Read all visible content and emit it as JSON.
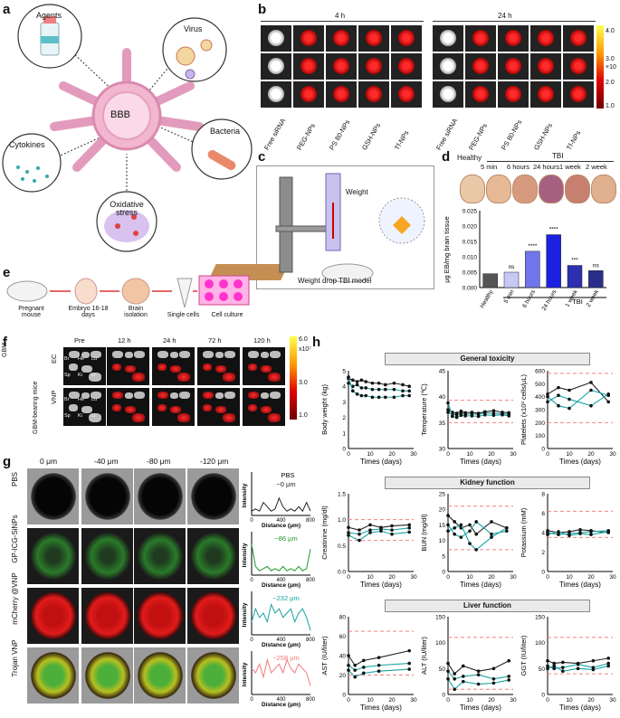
{
  "panels": {
    "a": {
      "label": "a",
      "center": "BBB",
      "bubbles": [
        "Agents",
        "Virus",
        "Cytokines",
        "Bacteria",
        "Oxidative stress"
      ]
    },
    "b": {
      "label": "b",
      "time_left": "4 h",
      "time_right": "24 h",
      "groups": [
        "Free siRNA",
        "PEG-NPs",
        "PS 80-NPs",
        "GSH-NPs",
        "Tf-NPs"
      ],
      "colorbar": {
        "ticks": [
          "4.0",
          "3.0",
          "2.0",
          "1.0"
        ],
        "unit": "×10"
      }
    },
    "c": {
      "label": "c",
      "weight": "Weight",
      "caption": "Weight drop TBI model"
    },
    "d": {
      "label": "d",
      "healthy": "Healthy",
      "tbi": "TBI",
      "photo_labels": [
        "5 min",
        "6 hours",
        "24 hours",
        "1 week",
        "2 week"
      ],
      "ylabel": "μg EB/mg brain tissue",
      "xgroup": "TBI"
    },
    "e": {
      "label": "e",
      "steps": [
        "Pregnant mouse",
        "Embryo 16-18 days",
        "Brain isolation",
        "Single cells",
        "Cell culture"
      ]
    },
    "f": {
      "label": "f",
      "left_labels": [
        "GBM",
        "GBM-bearing mice"
      ],
      "rows": [
        "EC",
        "VNP"
      ],
      "times": [
        "Pre",
        "12 h",
        "24 h",
        "72 h",
        "120 h"
      ],
      "organs": [
        "Br",
        "He",
        "Lu",
        "Sp",
        "Ki",
        "Li"
      ],
      "colorbar": {
        "ticks": [
          "6.0",
          "x10⁷",
          "3.0",
          "1.0"
        ]
      }
    },
    "g": {
      "label": "g",
      "depths": [
        "0 μm",
        "-40 μm",
        "-80 μm",
        "-120 μm"
      ],
      "rows": [
        {
          "name": "PBS",
          "depth": "~0 μm",
          "title": "PBS"
        },
        {
          "name": "GP-ICG-SiNPs",
          "depth": "~86 μm",
          "title": ""
        },
        {
          "name": "mCherry @VNP",
          "depth": "~232 μm",
          "title": ""
        },
        {
          "name": "Trojan VNP",
          "depth": "~258 μm",
          "title": ""
        }
      ],
      "ylabel": "Intensity",
      "xlabel": "Distance (μm)",
      "xticks": [
        "0",
        "400",
        "800"
      ]
    },
    "h": {
      "label": "h",
      "sections": [
        "General toxicity",
        "Kidney function",
        "Liver function"
      ],
      "xlabel": "Times (days)"
    }
  },
  "chart_data": [
    {
      "id": "d-bar",
      "type": "bar",
      "categories": [
        "Healthy",
        "5 min",
        "6 hours",
        "24 hours",
        "1 week",
        "2 week"
      ],
      "values": [
        0.0045,
        0.005,
        0.0118,
        0.0172,
        0.0072,
        0.0055
      ],
      "annotations": [
        "",
        "ns",
        "****",
        "****",
        "***",
        "ns"
      ],
      "ylabel": "μg EB/mg brain tissue",
      "ylim": [
        0,
        0.025
      ],
      "yticks": [
        "0.000",
        "0.005",
        "0.010",
        "0.015",
        "0.020",
        "0.025"
      ],
      "colors": [
        "#555555",
        "#c7c9f5",
        "#6f75ea",
        "#1a22e0",
        "#2b2fb0",
        "#2a2e8a"
      ]
    },
    {
      "id": "h1",
      "type": "line",
      "title": "Body weight (kg)",
      "ylabel": "Body weight (kg)",
      "ylim": [
        0,
        5
      ],
      "yticks": [
        "0",
        "1",
        "2",
        "3",
        "4",
        "5"
      ],
      "x": [
        0,
        2,
        4,
        6,
        8,
        11,
        14,
        17,
        21,
        25,
        28
      ],
      "series": [
        {
          "name": "s1",
          "values": [
            4.5,
            4.4,
            4.3,
            4.4,
            4.3,
            4.2,
            4.2,
            4.1,
            4.2,
            4.1,
            4.0
          ]
        },
        {
          "name": "s2",
          "values": [
            4.2,
            4.0,
            4.1,
            3.9,
            3.9,
            3.8,
            3.8,
            3.8,
            3.8,
            3.7,
            3.7
          ]
        },
        {
          "name": "s3",
          "values": [
            4.6,
            3.7,
            3.5,
            3.4,
            3.4,
            3.3,
            3.3,
            3.3,
            3.3,
            3.4,
            3.4
          ]
        }
      ],
      "ref": [],
      "xticks": [
        "0",
        "10",
        "20",
        "30"
      ],
      "xlim": [
        0,
        30
      ]
    },
    {
      "id": "h2",
      "type": "line",
      "title": "Temperature (℃)",
      "ylabel": "Temperature (℃)",
      "ylim": [
        30,
        45
      ],
      "yticks": [
        "30",
        "35",
        "40",
        "45"
      ],
      "x": [
        0,
        2,
        4,
        6,
        8,
        11,
        14,
        17,
        21,
        25,
        28
      ],
      "series": [
        {
          "name": "s1",
          "values": [
            37.5,
            37.0,
            36.8,
            37.2,
            36.9,
            37.0,
            36.8,
            37.1,
            37.3,
            37.0,
            36.9
          ]
        },
        {
          "name": "s2",
          "values": [
            37.0,
            36.6,
            36.5,
            36.8,
            36.6,
            36.7,
            36.6,
            36.9,
            36.8,
            36.7,
            36.6
          ]
        },
        {
          "name": "s3",
          "values": [
            38.8,
            36.2,
            36.0,
            36.4,
            36.3,
            36.3,
            36.2,
            36.5,
            36.4,
            36.5,
            36.3
          ]
        }
      ],
      "ref": [
        35.0,
        39.3
      ],
      "xticks": [
        "0",
        "10",
        "20",
        "30"
      ],
      "xlim": [
        0,
        30
      ]
    },
    {
      "id": "h3",
      "type": "line",
      "title": "Platelets",
      "ylabel": "Platelets (x10³ cells/μL)",
      "ylim": [
        0,
        600
      ],
      "yticks": [
        "0",
        "100",
        "200",
        "300",
        "400",
        "500",
        "600"
      ],
      "x": [
        0,
        5,
        10,
        20,
        28
      ],
      "series": [
        {
          "name": "s1",
          "values": [
            420,
            470,
            450,
            510,
            360
          ]
        },
        {
          "name": "s2",
          "values": [
            400,
            330,
            310,
            450,
            410
          ]
        },
        {
          "name": "s3",
          "values": [
            360,
            410,
            380,
            330,
            420
          ]
        }
      ],
      "ref": [
        200,
        580
      ],
      "xticks": [
        "0",
        "10",
        "20",
        "30"
      ],
      "xlim": [
        0,
        30
      ]
    },
    {
      "id": "h4",
      "type": "line",
      "title": "Creatinine",
      "ylabel": "Creatinine (mg/dl)",
      "ylim": [
        0,
        1.5
      ],
      "yticks": [
        "0.0",
        "0.5",
        "1.0",
        "1.5"
      ],
      "x": [
        0,
        5,
        10,
        15,
        20,
        28
      ],
      "series": [
        {
          "name": "s1",
          "values": [
            0.85,
            0.8,
            0.9,
            0.85,
            0.88,
            0.9
          ]
        },
        {
          "name": "s2",
          "values": [
            0.75,
            0.72,
            0.8,
            0.82,
            0.8,
            0.84
          ]
        },
        {
          "name": "s3",
          "values": [
            0.7,
            0.6,
            0.75,
            0.78,
            0.72,
            0.76
          ]
        }
      ],
      "ref": [
        0.6,
        1.0
      ],
      "xticks": [
        "0",
        "10",
        "20",
        "30"
      ],
      "xlim": [
        0,
        30
      ]
    },
    {
      "id": "h5",
      "type": "line",
      "title": "BUN",
      "ylabel": "BUN (mg/dl)",
      "ylim": [
        0,
        25
      ],
      "yticks": [
        "0",
        "5",
        "10",
        "15",
        "20",
        "25"
      ],
      "x": [
        0,
        3,
        6,
        10,
        13,
        20,
        27
      ],
      "series": [
        {
          "name": "s1",
          "values": [
            18,
            16,
            14,
            15,
            12,
            16,
            14
          ]
        },
        {
          "name": "s2",
          "values": [
            15,
            12,
            11,
            13,
            16,
            12,
            13
          ]
        },
        {
          "name": "s3",
          "values": [
            13,
            14,
            15,
            9,
            7,
            11,
            14
          ]
        }
      ],
      "ref": [
        7,
        21
      ],
      "xticks": [
        "0",
        "10",
        "20",
        "30"
      ],
      "xlim": [
        0,
        30
      ]
    },
    {
      "id": "h6",
      "type": "line",
      "title": "Potassium",
      "ylabel": "Potassium (mM)",
      "ylim": [
        0,
        8
      ],
      "yticks": [
        "0",
        "2",
        "4",
        "6",
        "8"
      ],
      "x": [
        0,
        5,
        10,
        15,
        20,
        28
      ],
      "series": [
        {
          "name": "s1",
          "values": [
            4.2,
            4.0,
            4.1,
            4.3,
            4.2,
            4.0
          ]
        },
        {
          "name": "s2",
          "values": [
            4.0,
            3.8,
            3.9,
            4.0,
            4.1,
            4.2
          ]
        },
        {
          "name": "s3",
          "values": [
            3.8,
            4.1,
            3.7,
            3.9,
            3.8,
            4.1
          ]
        }
      ],
      "ref": [
        3.5,
        6.2
      ],
      "xticks": [
        "0",
        "10",
        "20",
        "30"
      ],
      "xlim": [
        0,
        30
      ]
    },
    {
      "id": "h7",
      "type": "line",
      "title": "AST",
      "ylabel": "AST (IU/liter)",
      "ylim": [
        0,
        80
      ],
      "yticks": [
        "0",
        "20",
        "40",
        "60",
        "80"
      ],
      "x": [
        0,
        3,
        7,
        14,
        28
      ],
      "series": [
        {
          "name": "s1",
          "values": [
            40,
            30,
            35,
            38,
            45
          ]
        },
        {
          "name": "s2",
          "values": [
            30,
            25,
            28,
            30,
            32
          ]
        },
        {
          "name": "s3",
          "values": [
            25,
            18,
            22,
            24,
            26
          ]
        }
      ],
      "ref": [
        20,
        65
      ],
      "xticks": [
        "0",
        "10",
        "20",
        "30"
      ],
      "xlim": [
        0,
        30
      ]
    },
    {
      "id": "h8",
      "type": "line",
      "title": "ALT",
      "ylabel": "ALT (IU/liter)",
      "ylim": [
        0,
        150
      ],
      "yticks": [
        "0",
        "50",
        "100",
        "150"
      ],
      "x": [
        0,
        3,
        7,
        14,
        21,
        28
      ],
      "series": [
        {
          "name": "s1",
          "values": [
            60,
            40,
            55,
            45,
            50,
            65
          ]
        },
        {
          "name": "s2",
          "values": [
            45,
            30,
            35,
            38,
            30,
            35
          ]
        },
        {
          "name": "s3",
          "values": [
            30,
            10,
            25,
            20,
            22,
            28
          ]
        }
      ],
      "ref": [
        10,
        110
      ],
      "xticks": [
        "0",
        "10",
        "20",
        "30"
      ],
      "xlim": [
        0,
        30
      ]
    },
    {
      "id": "h9",
      "type": "line",
      "title": "GGT",
      "ylabel": "GGT (IU/liter)",
      "ylim": [
        0,
        150
      ],
      "yticks": [
        "0",
        "50",
        "100",
        "150"
      ],
      "x": [
        0,
        3,
        7,
        14,
        21,
        28
      ],
      "series": [
        {
          "name": "s1",
          "values": [
            65,
            60,
            62,
            60,
            65,
            70
          ]
        },
        {
          "name": "s2",
          "values": [
            55,
            50,
            52,
            58,
            52,
            60
          ]
        },
        {
          "name": "s3",
          "values": [
            50,
            55,
            45,
            50,
            48,
            55
          ]
        }
      ],
      "ref": [
        40,
        110
      ],
      "xticks": [
        "0",
        "10",
        "20",
        "30"
      ],
      "xlim": [
        0,
        30
      ]
    }
  ]
}
